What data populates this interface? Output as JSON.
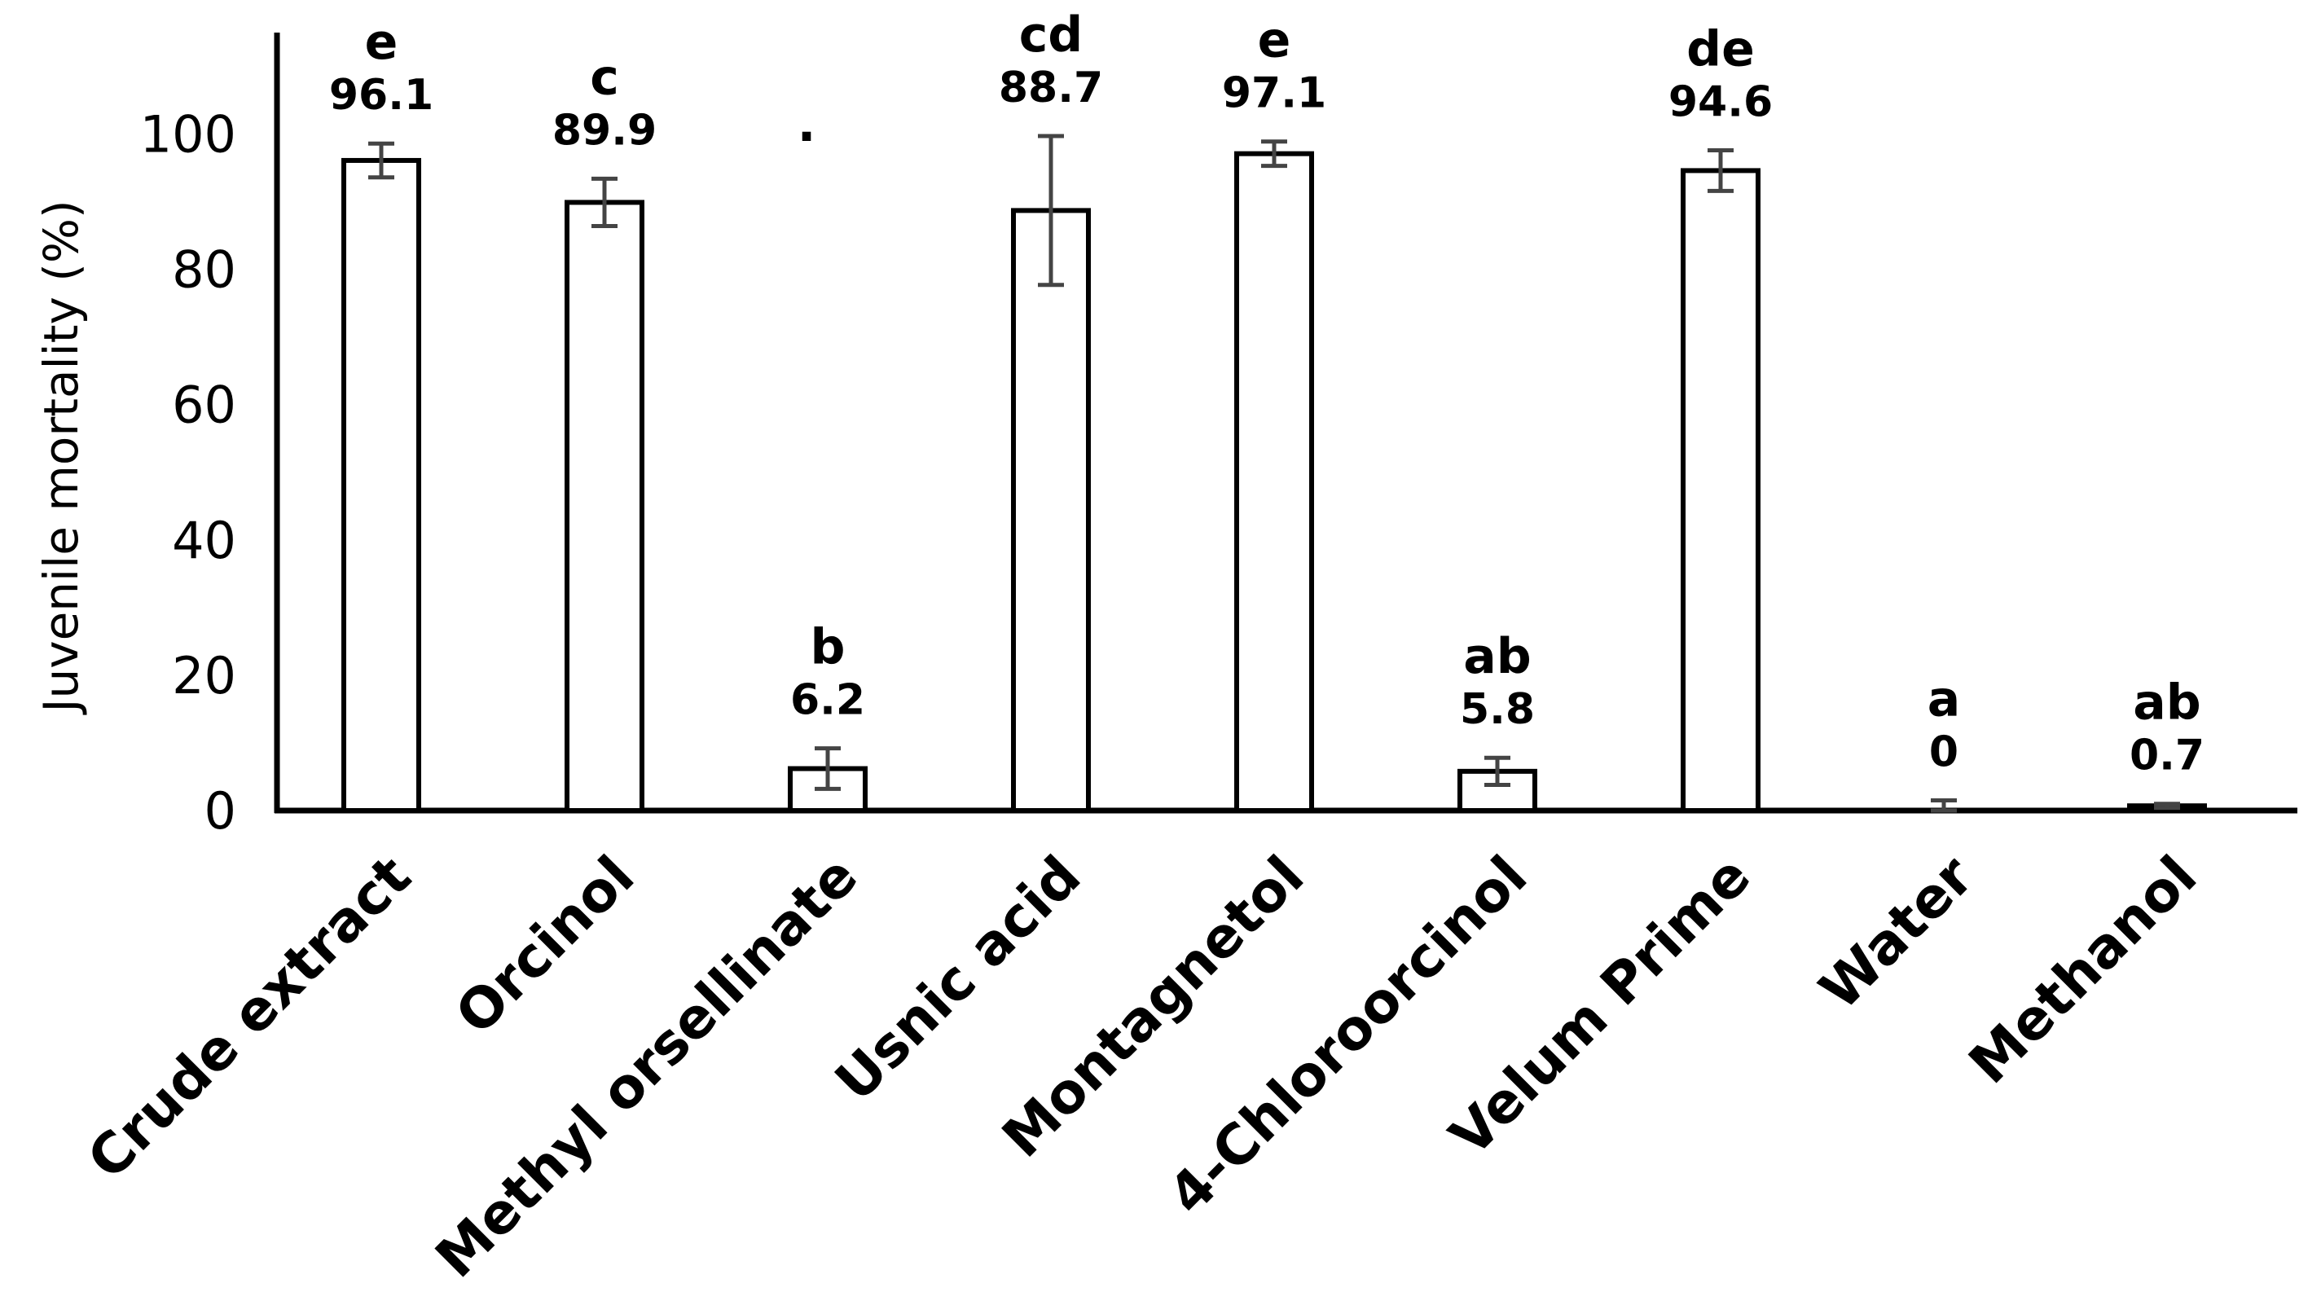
{
  "chart_data": {
    "type": "bar",
    "title": "",
    "xlabel": "",
    "ylabel": "Juvenile mortality (%)",
    "ylim": [
      0,
      115
    ],
    "yticks": [
      0,
      20,
      40,
      60,
      80,
      100
    ],
    "grid": false,
    "legend": "none",
    "bar_fill": "#ffffff",
    "bar_stroke": "#000000",
    "categories": [
      "Crude extract",
      "Orcinol",
      "Methyl orsellinate",
      "Usnic acid",
      "Montagnetol",
      "4-Chloroorcinol",
      "Velum Prime",
      "Water",
      "Methanol"
    ],
    "values": [
      96.1,
      89.9,
      6.2,
      88.7,
      97.1,
      5.8,
      94.6,
      0,
      0.7
    ],
    "value_labels": [
      "96.1",
      "89.9",
      "6.2",
      "88.7",
      "97.1",
      "5.8",
      "94.6",
      "0",
      "0.7"
    ],
    "errors": [
      2.5,
      3.5,
      3.0,
      11.0,
      1.8,
      2.0,
      3.0,
      1.5,
      0.3
    ],
    "significance": [
      "e",
      "c",
      "b",
      "cd",
      "e",
      "ab",
      "de",
      "a",
      "ab"
    ]
  }
}
